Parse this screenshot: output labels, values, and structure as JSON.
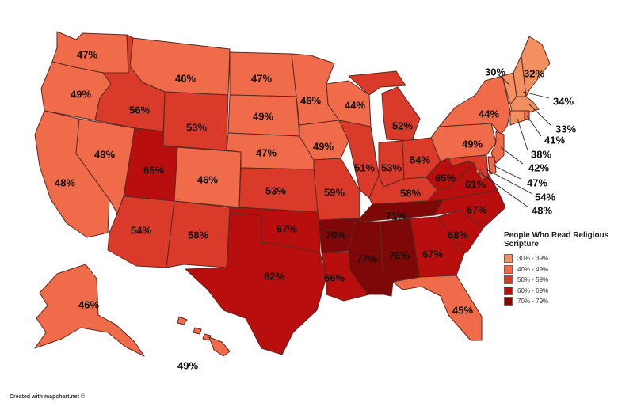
{
  "legend": {
    "title": "People Who Read Religious Scripture",
    "items": [
      {
        "range": "30% - 39%",
        "color": "#F2905F"
      },
      {
        "range": "40% - 49%",
        "color": "#EF6B4A"
      },
      {
        "range": "50% - 59%",
        "color": "#D93A2A"
      },
      {
        "range": "60% - 69%",
        "color": "#B80F0E"
      },
      {
        "range": "70% - 79%",
        "color": "#7E0808"
      }
    ]
  },
  "credit": "Created with mapchart.net ©",
  "states": [
    {
      "id": "WA",
      "value": "47%",
      "bin": 1
    },
    {
      "id": "OR",
      "value": "49%",
      "bin": 1
    },
    {
      "id": "CA",
      "value": "48%",
      "bin": 1
    },
    {
      "id": "NV",
      "value": "49%",
      "bin": 1
    },
    {
      "id": "ID",
      "value": "56%",
      "bin": 2
    },
    {
      "id": "MT",
      "value": "46%",
      "bin": 1
    },
    {
      "id": "WY",
      "value": "53%",
      "bin": 2
    },
    {
      "id": "UT",
      "value": "65%",
      "bin": 3
    },
    {
      "id": "CO",
      "value": "46%",
      "bin": 1
    },
    {
      "id": "AZ",
      "value": "54%",
      "bin": 2
    },
    {
      "id": "NM",
      "value": "58%",
      "bin": 2
    },
    {
      "id": "ND",
      "value": "47%",
      "bin": 1
    },
    {
      "id": "SD",
      "value": "49%",
      "bin": 1
    },
    {
      "id": "NE",
      "value": "47%",
      "bin": 1
    },
    {
      "id": "KS",
      "value": "53%",
      "bin": 2
    },
    {
      "id": "OK",
      "value": "67%",
      "bin": 3
    },
    {
      "id": "TX",
      "value": "62%",
      "bin": 3
    },
    {
      "id": "MN",
      "value": "46%",
      "bin": 1
    },
    {
      "id": "IA",
      "value": "49%",
      "bin": 1
    },
    {
      "id": "MO",
      "value": "59%",
      "bin": 2
    },
    {
      "id": "AR",
      "value": "70%",
      "bin": 4
    },
    {
      "id": "LA",
      "value": "66%",
      "bin": 3
    },
    {
      "id": "WI",
      "value": "44%",
      "bin": 1
    },
    {
      "id": "IL",
      "value": "51%",
      "bin": 2
    },
    {
      "id": "MI",
      "value": "52%",
      "bin": 2
    },
    {
      "id": "IN",
      "value": "53%",
      "bin": 2
    },
    {
      "id": "OH",
      "value": "54%",
      "bin": 2
    },
    {
      "id": "KY",
      "value": "58%",
      "bin": 2
    },
    {
      "id": "TN",
      "value": "71%",
      "bin": 4
    },
    {
      "id": "MS",
      "value": "77%",
      "bin": 4
    },
    {
      "id": "AL",
      "value": "76%",
      "bin": 4
    },
    {
      "id": "GA",
      "value": "67%",
      "bin": 3
    },
    {
      "id": "FL",
      "value": "45%",
      "bin": 1
    },
    {
      "id": "SC",
      "value": "68%",
      "bin": 3
    },
    {
      "id": "NC",
      "value": "67%",
      "bin": 3
    },
    {
      "id": "VA",
      "value": "61%",
      "bin": 3
    },
    {
      "id": "WV",
      "value": "65%",
      "bin": 3
    },
    {
      "id": "PA",
      "value": "49%",
      "bin": 1
    },
    {
      "id": "NY",
      "value": "44%",
      "bin": 1
    },
    {
      "id": "ME",
      "value": "32%",
      "bin": 0
    },
    {
      "id": "VT",
      "value": "30%",
      "bin": 0
    },
    {
      "id": "NH",
      "value": "34%",
      "bin": 0
    },
    {
      "id": "MA",
      "value": "33%",
      "bin": 0
    },
    {
      "id": "RI",
      "value": "41%",
      "bin": 1
    },
    {
      "id": "CT",
      "value": "38%",
      "bin": 0
    },
    {
      "id": "NJ",
      "value": "42%",
      "bin": 1
    },
    {
      "id": "DE",
      "value": "47%",
      "bin": 1
    },
    {
      "id": "MD",
      "value": "54%",
      "bin": 2
    },
    {
      "id": "DC",
      "value": "48%",
      "bin": 1
    },
    {
      "id": "AK",
      "value": "46%",
      "bin": 1
    },
    {
      "id": "HI",
      "value": "49%",
      "bin": 1
    }
  ]
}
